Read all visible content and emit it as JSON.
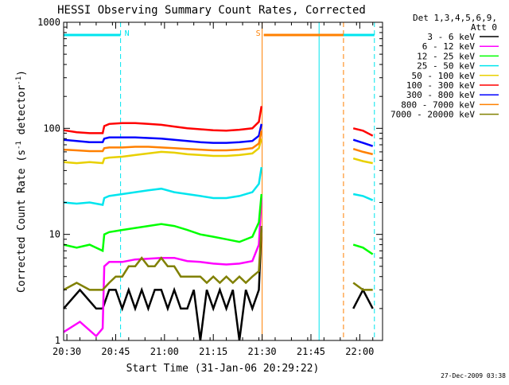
{
  "chart_data": {
    "type": "line",
    "title": "HESSI Observing Summary Count Rates, Corrected",
    "xlabel": "Start Time (31-Jan-06 20:29:22)",
    "ylabel_main": "Corrected Count Rate (s",
    "ylabel_sup1": "-1",
    "ylabel_mid": " detector",
    "ylabel_sup2": "-1",
    "ylabel_end": ")",
    "y_scale": "log",
    "ylim": [
      1,
      1000
    ],
    "xlim": [
      0,
      98
    ],
    "x_ticks": [
      {
        "label": "20:30",
        "x": 1
      },
      {
        "label": "20:45",
        "x": 16
      },
      {
        "label": "21:00",
        "x": 31
      },
      {
        "label": "21:15",
        "x": 46
      },
      {
        "label": "21:30",
        "x": 61
      },
      {
        "label": "21:45",
        "x": 76
      },
      {
        "label": "22:00",
        "x": 91
      }
    ],
    "y_ticks": [
      {
        "label": "1",
        "y": 1
      },
      {
        "label": "10",
        "y": 10
      },
      {
        "label": "100",
        "y": 100
      },
      {
        "label": "1000",
        "y": 1000
      }
    ],
    "legend_header_1": "Det 1,3,4,5,6,9,",
    "legend_header_2": "Att 0",
    "legend_position": "right",
    "timestamp": "27-Dec-2009 03:38",
    "annotations": [
      {
        "label": "N",
        "x": 18,
        "color": "#00e5ee"
      },
      {
        "label": "S",
        "x": 61,
        "color": "#ff8000"
      }
    ],
    "flag_bars": [
      {
        "name": "night",
        "color": "#00e5ee",
        "segments": [
          [
            0,
            17.5
          ],
          [
            78.5,
            95.5
          ]
        ]
      },
      {
        "name": "saa",
        "color": "#ff8000",
        "segments": [
          [
            61.5,
            86
          ]
        ]
      }
    ],
    "vlines": [
      {
        "x": 0,
        "color": "#00e5ee",
        "dash": false
      },
      {
        "x": 17.5,
        "color": "#00e5ee",
        "dash": true
      },
      {
        "x": 61,
        "color": "#ff8000",
        "dash": false
      },
      {
        "x": 78.5,
        "color": "#00e5ee",
        "dash": false
      },
      {
        "x": 86,
        "color": "#ff8000",
        "dash": true
      },
      {
        "x": 95.5,
        "color": "#00e5ee",
        "dash": true
      }
    ],
    "series": [
      {
        "name": "3 - 6 keV",
        "color": "#000000",
        "x": [
          0,
          5,
          10,
          12,
          14,
          16,
          18,
          20,
          22,
          24,
          26,
          28,
          30,
          32,
          34,
          36,
          38,
          40,
          42,
          44,
          46,
          48,
          50,
          52,
          54,
          56,
          58,
          60,
          60.8,
          89,
          92,
          95
        ],
        "y": [
          2,
          3,
          2,
          2,
          3,
          3,
          2,
          3,
          2,
          3,
          2,
          3,
          3,
          2,
          3,
          2,
          2,
          3,
          1,
          3,
          2,
          3,
          2,
          3,
          1,
          3,
          2,
          3,
          12,
          2,
          3,
          2
        ]
      },
      {
        "name": "6 - 12 keV",
        "color": "#ff00ff",
        "x": [
          0,
          5,
          10,
          12,
          12.5,
          14,
          18,
          22,
          26,
          30,
          34,
          38,
          42,
          46,
          50,
          54,
          58,
          60,
          60.8
        ],
        "y": [
          1.2,
          1.5,
          1.1,
          1.3,
          5,
          5.5,
          5.5,
          5.8,
          5.9,
          6,
          6,
          5.6,
          5.5,
          5.3,
          5.2,
          5.3,
          5.6,
          8,
          22
        ]
      },
      {
        "name": "12 - 25 keV",
        "color": "#00ff00",
        "x": [
          0,
          4,
          8,
          12,
          12.5,
          14,
          18,
          22,
          26,
          30,
          34,
          38,
          42,
          46,
          50,
          54,
          58,
          60,
          60.8,
          89,
          92,
          95
        ],
        "y": [
          8,
          7.5,
          8,
          7,
          10,
          10.5,
          11,
          11.5,
          12,
          12.5,
          12,
          11,
          10,
          9.5,
          9,
          8.5,
          9.5,
          13,
          24,
          8,
          7.5,
          6.5
        ]
      },
      {
        "name": "25 - 50 keV",
        "color": "#00e5ee",
        "x": [
          0,
          4,
          8,
          12,
          12.5,
          14,
          18,
          22,
          26,
          30,
          34,
          38,
          42,
          46,
          50,
          54,
          58,
          60,
          60.8,
          89,
          92,
          95
        ],
        "y": [
          20,
          19.5,
          20,
          19,
          22,
          23,
          24,
          25,
          26,
          27,
          25,
          24,
          23,
          22,
          22,
          23,
          25,
          30,
          43,
          24,
          23,
          21
        ]
      },
      {
        "name": "50 - 100 keV",
        "color": "#e8d000",
        "x": [
          0,
          4,
          8,
          12,
          12.5,
          14,
          18,
          22,
          26,
          30,
          34,
          38,
          42,
          46,
          50,
          54,
          58,
          60,
          60.8,
          89,
          92,
          95
        ],
        "y": [
          48,
          47,
          48,
          47,
          52,
          53,
          54,
          56,
          58,
          60,
          59,
          57,
          56,
          55,
          55,
          56,
          58,
          65,
          80,
          52,
          49,
          47
        ]
      },
      {
        "name": "100 - 300 keV",
        "color": "#ff0000",
        "x": [
          0,
          4,
          8,
          12,
          12.5,
          14,
          18,
          22,
          26,
          30,
          34,
          38,
          42,
          46,
          50,
          54,
          58,
          60,
          60.8,
          89,
          92,
          95
        ],
        "y": [
          96,
          92,
          90,
          90,
          105,
          110,
          112,
          112,
          110,
          108,
          104,
          100,
          98,
          96,
          95,
          97,
          100,
          115,
          162,
          100,
          95,
          85
        ]
      },
      {
        "name": "300 - 800 keV",
        "color": "#0000ff",
        "x": [
          0,
          4,
          8,
          12,
          12.5,
          14,
          18,
          22,
          26,
          30,
          34,
          38,
          42,
          46,
          50,
          54,
          58,
          60,
          60.8,
          89,
          92,
          95
        ],
        "y": [
          78,
          76,
          74,
          74,
          80,
          82,
          82,
          82,
          81,
          80,
          78,
          76,
          74,
          73,
          73,
          74,
          76,
          85,
          110,
          78,
          73,
          68
        ]
      },
      {
        "name": "800 - 7000 keV",
        "color": "#ff8000",
        "x": [
          0,
          4,
          8,
          12,
          12.5,
          14,
          18,
          22,
          26,
          30,
          34,
          38,
          42,
          46,
          50,
          54,
          58,
          60,
          60.8,
          89,
          92,
          95
        ],
        "y": [
          63,
          62,
          61,
          61,
          65,
          66,
          66,
          67,
          67,
          66,
          65,
          64,
          63,
          62,
          62,
          63,
          65,
          72,
          95,
          64,
          60,
          57
        ]
      },
      {
        "name": "7000 - 20000 keV",
        "color": "#808000",
        "x": [
          0,
          4,
          8,
          12,
          14,
          16,
          18,
          20,
          22,
          24,
          26,
          28,
          30,
          32,
          34,
          36,
          38,
          40,
          42,
          44,
          46,
          48,
          50,
          52,
          54,
          56,
          58,
          60,
          60.8,
          89,
          92,
          95
        ],
        "y": [
          3,
          3.5,
          3,
          3,
          3.5,
          4,
          4,
          5,
          5,
          6,
          5,
          5,
          6,
          5,
          5,
          4,
          4,
          4,
          4,
          3.5,
          4,
          3.5,
          4,
          3.5,
          4,
          3.5,
          4,
          4.5,
          12,
          3.5,
          3,
          3
        ]
      }
    ]
  }
}
